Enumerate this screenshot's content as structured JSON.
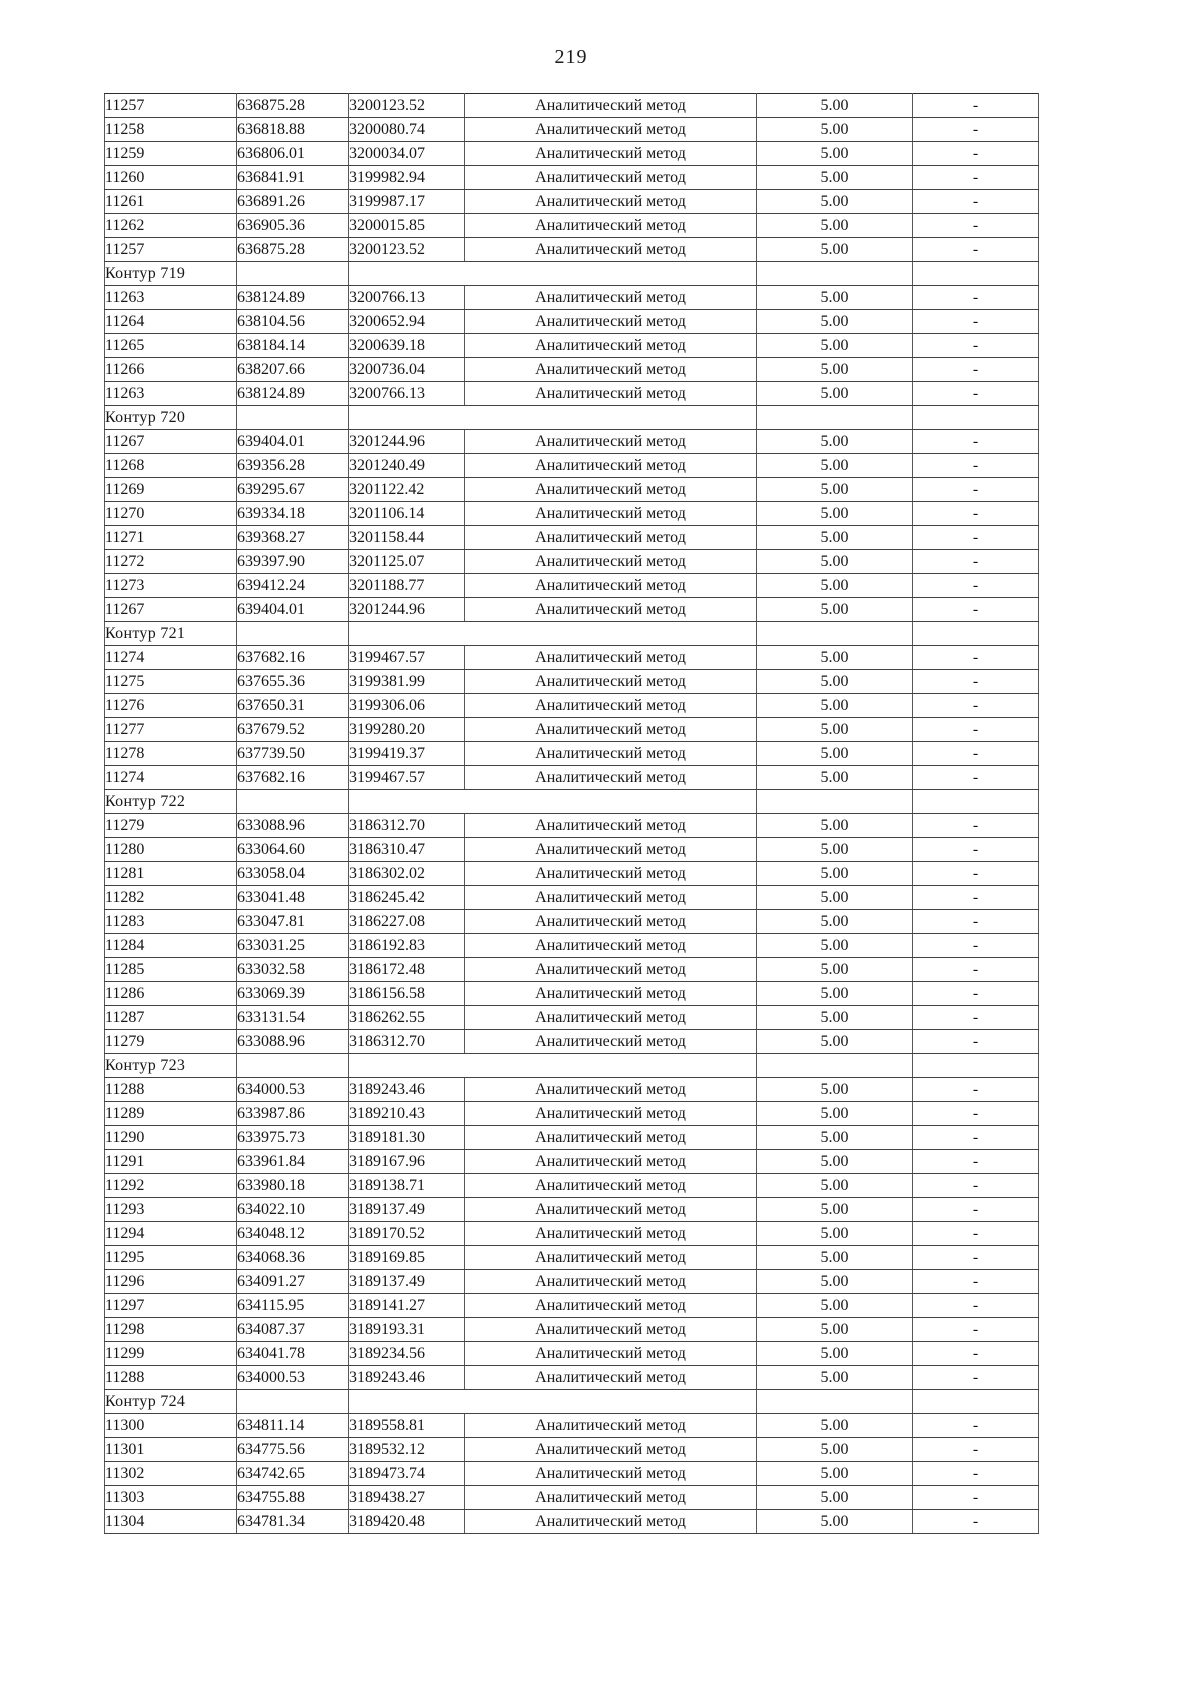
{
  "page": {
    "number": "219"
  },
  "table": {
    "method_label": "Аналитический метод",
    "accuracy_value": "5.00",
    "dash": "-",
    "rows": [
      {
        "type": "data",
        "n": "11257",
        "x": "636875.28",
        "y": "3200123.52"
      },
      {
        "type": "data",
        "n": "11258",
        "x": "636818.88",
        "y": "3200080.74"
      },
      {
        "type": "data",
        "n": "11259",
        "x": "636806.01",
        "y": "3200034.07"
      },
      {
        "type": "data",
        "n": "11260",
        "x": "636841.91",
        "y": "3199982.94"
      },
      {
        "type": "data",
        "n": "11261",
        "x": "636891.26",
        "y": "3199987.17"
      },
      {
        "type": "data",
        "n": "11262",
        "x": "636905.36",
        "y": "3200015.85"
      },
      {
        "type": "data",
        "n": "11257",
        "x": "636875.28",
        "y": "3200123.52"
      },
      {
        "type": "section",
        "label": "Контур 719"
      },
      {
        "type": "data",
        "n": "11263",
        "x": "638124.89",
        "y": "3200766.13"
      },
      {
        "type": "data",
        "n": "11264",
        "x": "638104.56",
        "y": "3200652.94"
      },
      {
        "type": "data",
        "n": "11265",
        "x": "638184.14",
        "y": "3200639.18"
      },
      {
        "type": "data",
        "n": "11266",
        "x": "638207.66",
        "y": "3200736.04"
      },
      {
        "type": "data",
        "n": "11263",
        "x": "638124.89",
        "y": "3200766.13"
      },
      {
        "type": "section",
        "label": "Контур 720"
      },
      {
        "type": "data",
        "n": "11267",
        "x": "639404.01",
        "y": "3201244.96"
      },
      {
        "type": "data",
        "n": "11268",
        "x": "639356.28",
        "y": "3201240.49"
      },
      {
        "type": "data",
        "n": "11269",
        "x": "639295.67",
        "y": "3201122.42"
      },
      {
        "type": "data",
        "n": "11270",
        "x": "639334.18",
        "y": "3201106.14"
      },
      {
        "type": "data",
        "n": "11271",
        "x": "639368.27",
        "y": "3201158.44"
      },
      {
        "type": "data",
        "n": "11272",
        "x": "639397.90",
        "y": "3201125.07"
      },
      {
        "type": "data",
        "n": "11273",
        "x": "639412.24",
        "y": "3201188.77"
      },
      {
        "type": "data",
        "n": "11267",
        "x": "639404.01",
        "y": "3201244.96"
      },
      {
        "type": "section",
        "label": "Контур 721"
      },
      {
        "type": "data",
        "n": "11274",
        "x": "637682.16",
        "y": "3199467.57"
      },
      {
        "type": "data",
        "n": "11275",
        "x": "637655.36",
        "y": "3199381.99"
      },
      {
        "type": "data",
        "n": "11276",
        "x": "637650.31",
        "y": "3199306.06"
      },
      {
        "type": "data",
        "n": "11277",
        "x": "637679.52",
        "y": "3199280.20"
      },
      {
        "type": "data",
        "n": "11278",
        "x": "637739.50",
        "y": "3199419.37"
      },
      {
        "type": "data",
        "n": "11274",
        "x": "637682.16",
        "y": "3199467.57"
      },
      {
        "type": "section",
        "label": "Контур 722"
      },
      {
        "type": "data",
        "n": "11279",
        "x": "633088.96",
        "y": "3186312.70"
      },
      {
        "type": "data",
        "n": "11280",
        "x": "633064.60",
        "y": "3186310.47"
      },
      {
        "type": "data",
        "n": "11281",
        "x": "633058.04",
        "y": "3186302.02"
      },
      {
        "type": "data",
        "n": "11282",
        "x": "633041.48",
        "y": "3186245.42"
      },
      {
        "type": "data",
        "n": "11283",
        "x": "633047.81",
        "y": "3186227.08"
      },
      {
        "type": "data",
        "n": "11284",
        "x": "633031.25",
        "y": "3186192.83"
      },
      {
        "type": "data",
        "n": "11285",
        "x": "633032.58",
        "y": "3186172.48"
      },
      {
        "type": "data",
        "n": "11286",
        "x": "633069.39",
        "y": "3186156.58"
      },
      {
        "type": "data",
        "n": "11287",
        "x": "633131.54",
        "y": "3186262.55"
      },
      {
        "type": "data",
        "n": "11279",
        "x": "633088.96",
        "y": "3186312.70"
      },
      {
        "type": "section",
        "label": "Контур 723"
      },
      {
        "type": "data",
        "n": "11288",
        "x": "634000.53",
        "y": "3189243.46"
      },
      {
        "type": "data",
        "n": "11289",
        "x": "633987.86",
        "y": "3189210.43"
      },
      {
        "type": "data",
        "n": "11290",
        "x": "633975.73",
        "y": "3189181.30"
      },
      {
        "type": "data",
        "n": "11291",
        "x": "633961.84",
        "y": "3189167.96"
      },
      {
        "type": "data",
        "n": "11292",
        "x": "633980.18",
        "y": "3189138.71"
      },
      {
        "type": "data",
        "n": "11293",
        "x": "634022.10",
        "y": "3189137.49"
      },
      {
        "type": "data",
        "n": "11294",
        "x": "634048.12",
        "y": "3189170.52"
      },
      {
        "type": "data",
        "n": "11295",
        "x": "634068.36",
        "y": "3189169.85"
      },
      {
        "type": "data",
        "n": "11296",
        "x": "634091.27",
        "y": "3189137.49"
      },
      {
        "type": "data",
        "n": "11297",
        "x": "634115.95",
        "y": "3189141.27"
      },
      {
        "type": "data",
        "n": "11298",
        "x": "634087.37",
        "y": "3189193.31"
      },
      {
        "type": "data",
        "n": "11299",
        "x": "634041.78",
        "y": "3189234.56"
      },
      {
        "type": "data",
        "n": "11288",
        "x": "634000.53",
        "y": "3189243.46"
      },
      {
        "type": "section",
        "label": "Контур 724"
      },
      {
        "type": "data",
        "n": "11300",
        "x": "634811.14",
        "y": "3189558.81"
      },
      {
        "type": "data",
        "n": "11301",
        "x": "634775.56",
        "y": "3189532.12"
      },
      {
        "type": "data",
        "n": "11302",
        "x": "634742.65",
        "y": "3189473.74"
      },
      {
        "type": "data",
        "n": "11303",
        "x": "634755.88",
        "y": "3189438.27"
      },
      {
        "type": "data",
        "n": "11304",
        "x": "634781.34",
        "y": "3189420.48"
      }
    ]
  }
}
